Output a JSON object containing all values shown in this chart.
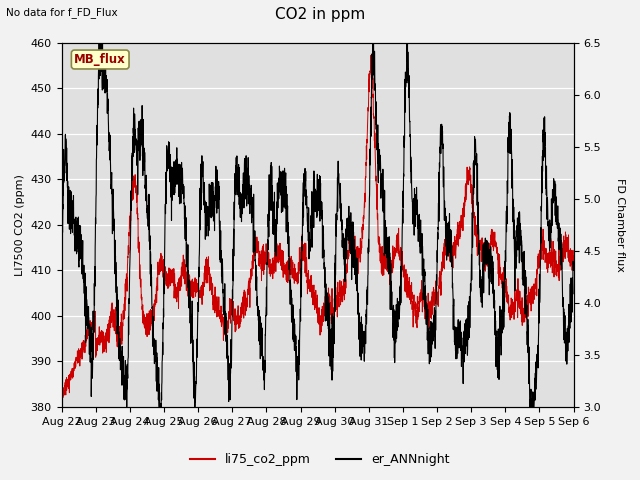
{
  "title": "CO2 in ppm",
  "top_left_text": "No data for f_FD_Flux",
  "ylabel_left": "LI7500 CO2 (ppm)",
  "ylabel_right": "FD Chamber flux",
  "ylim_left": [
    380,
    460
  ],
  "ylim_right": [
    3.0,
    6.5
  ],
  "yticks_left": [
    380,
    390,
    400,
    410,
    420,
    430,
    440,
    450,
    460
  ],
  "yticks_right": [
    3.0,
    3.5,
    4.0,
    4.5,
    5.0,
    5.5,
    6.0,
    6.5
  ],
  "xtick_labels": [
    "Aug 22",
    "Aug 23",
    "Aug 24",
    "Aug 25",
    "Aug 26",
    "Aug 27",
    "Aug 28",
    "Aug 29",
    "Aug 30",
    "Aug 31",
    "Sep 1",
    "Sep 2",
    "Sep 3",
    "Sep 4",
    "Sep 5",
    "Sep 6"
  ],
  "legend_labels": [
    "li75_co2_ppm",
    "er_ANNnight"
  ],
  "line1_color": "#cc0000",
  "line2_color": "#000000",
  "background_color": "#e0e0e0",
  "fig_background": "#f2f2f2",
  "mb_flux_box_color": "#ffffcc",
  "mb_flux_text_color": "#990000",
  "mb_flux_edge_color": "#888844",
  "grid_color": "#ffffff",
  "title_fontsize": 11,
  "label_fontsize": 8,
  "tick_fontsize": 8,
  "n_points": 3000
}
